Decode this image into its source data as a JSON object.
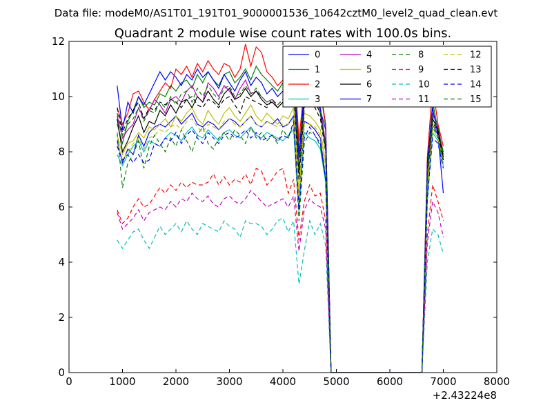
{
  "chart_data": {
    "type": "line",
    "suptitle": "Data file: modeM0/AS1T01_191T01_9000001536_10642cztM0_level2_quad_clean.evt",
    "title": "Quadrant 2 module wise count rates with 100.0s bins.",
    "xlabel": "",
    "ylabel": "",
    "x_offset_text": "+2.43224e8",
    "xlim": [
      0,
      8000
    ],
    "ylim": [
      0,
      12
    ],
    "xticks": [
      "0",
      "1000",
      "2000",
      "3000",
      "4000",
      "5000",
      "6000",
      "7000",
      "8000"
    ],
    "yticks": [
      "0",
      "2",
      "4",
      "6",
      "8",
      "10",
      "12"
    ],
    "grid": false,
    "legend_position": "top-right",
    "legend_columns": 4,
    "x": [
      900,
      1000,
      1100,
      1200,
      1300,
      1400,
      1500,
      1600,
      1700,
      1800,
      1900,
      2000,
      2100,
      2200,
      2300,
      2400,
      2500,
      2600,
      2700,
      2800,
      2900,
      3000,
      3100,
      3200,
      3300,
      3400,
      3500,
      3600,
      3700,
      3800,
      3900,
      4000,
      4100,
      4200,
      4300,
      4400,
      4500,
      4600,
      4700,
      4800,
      4900,
      5000,
      5500,
      6000,
      6500,
      6600,
      6700,
      6800,
      6900,
      7000
    ],
    "series": [
      {
        "name": "0",
        "color": "#0000ff",
        "dash": false,
        "values": [
          8.4,
          7.6,
          8.1,
          7.9,
          8.6,
          8.2,
          8.7,
          8.9,
          9.0,
          8.9,
          9.1,
          9.3,
          9.0,
          9.2,
          9.4,
          9.0,
          8.9,
          9.1,
          9.0,
          8.8,
          9.0,
          9.2,
          9.1,
          8.9,
          9.1,
          9.3,
          9.0,
          8.9,
          9.1,
          9.0,
          9.2,
          8.9,
          9.0,
          9.3,
          6.0,
          9.1,
          9.0,
          8.8,
          8.5,
          7.0,
          0,
          0,
          0,
          0,
          0,
          0,
          6.5,
          9.0,
          8.6,
          7.8
        ]
      },
      {
        "name": "1",
        "color": "#008000",
        "dash": false,
        "values": [
          9.0,
          8.3,
          9.1,
          9.5,
          10.0,
          9.6,
          9.8,
          9.7,
          10.1,
          10.0,
          10.4,
          10.2,
          10.5,
          10.6,
          10.3,
          10.8,
          10.5,
          10.9,
          10.6,
          10.4,
          10.8,
          10.9,
          10.5,
          10.7,
          11.0,
          10.6,
          11.1,
          10.8,
          10.6,
          10.4,
          10.2,
          10.5,
          10.3,
          11.4,
          8.0,
          10.1,
          10.9,
          10.6,
          10.2,
          8.9,
          0,
          0,
          0,
          0,
          0,
          0,
          7.5,
          9.8,
          8.8,
          8.0
        ]
      },
      {
        "name": "2",
        "color": "#ff0000",
        "dash": false,
        "values": [
          9.6,
          9.0,
          9.4,
          10.1,
          10.2,
          9.8,
          9.5,
          9.9,
          10.2,
          10.5,
          10.3,
          11.0,
          10.8,
          11.1,
          10.7,
          11.2,
          10.9,
          11.3,
          11.0,
          10.8,
          11.2,
          11.1,
          10.7,
          11.0,
          11.9,
          11.1,
          11.8,
          11.6,
          10.9,
          10.7,
          10.4,
          10.6,
          10.4,
          11.6,
          8.4,
          10.4,
          11.1,
          10.8,
          10.3,
          9.0,
          0,
          0,
          0,
          0,
          0,
          0,
          7.8,
          10.4,
          9.0,
          8.2
        ]
      },
      {
        "name": "3",
        "color": "#00bfbf",
        "dash": false,
        "values": [
          7.9,
          7.5,
          7.9,
          8.2,
          8.4,
          8.0,
          8.4,
          8.3,
          8.2,
          8.5,
          8.7,
          8.6,
          8.4,
          8.7,
          8.9,
          8.6,
          8.5,
          8.8,
          8.6,
          8.4,
          8.7,
          8.8,
          8.6,
          8.5,
          8.7,
          8.9,
          8.6,
          8.5,
          8.7,
          8.6,
          8.5,
          8.4,
          8.6,
          8.8,
          5.8,
          8.7,
          8.5,
          8.4,
          8.1,
          6.9,
          0,
          0,
          0,
          0,
          0,
          0,
          6.2,
          8.7,
          8.4,
          7.5
        ]
      },
      {
        "name": "4",
        "color": "#bf00bf",
        "dash": false,
        "values": [
          9.3,
          8.5,
          8.8,
          9.0,
          9.6,
          9.2,
          9.5,
          9.9,
          9.7,
          9.4,
          9.9,
          10.0,
          9.8,
          10.2,
          10.4,
          10.0,
          9.8,
          10.5,
          10.3,
          10.0,
          10.4,
          10.2,
          9.9,
          10.3,
          10.6,
          10.1,
          10.2,
          10.0,
          9.8,
          9.9,
          9.6,
          9.8,
          9.7,
          10.4,
          7.4,
          10.0,
          10.3,
          9.9,
          9.6,
          8.3,
          0,
          0,
          0,
          0,
          0,
          0,
          7.2,
          9.4,
          8.9,
          7.9
        ]
      },
      {
        "name": "5",
        "color": "#bfbf00",
        "dash": false,
        "values": [
          8.6,
          7.9,
          8.3,
          8.4,
          8.7,
          8.5,
          8.9,
          8.8,
          9.0,
          9.2,
          8.9,
          9.3,
          9.1,
          9.4,
          9.6,
          9.2,
          9.0,
          9.5,
          9.2,
          9.0,
          9.4,
          9.6,
          9.3,
          9.1,
          9.4,
          9.7,
          9.3,
          9.1,
          9.4,
          9.2,
          9.0,
          9.3,
          9.2,
          9.6,
          6.5,
          9.4,
          9.3,
          9.1,
          8.8,
          7.6,
          0,
          0,
          0,
          0,
          0,
          0,
          6.8,
          9.0,
          8.7,
          7.7
        ]
      },
      {
        "name": "6",
        "color": "#000000",
        "dash": false,
        "values": [
          9.2,
          8.0,
          8.4,
          8.9,
          9.3,
          8.7,
          9.1,
          9.0,
          9.5,
          9.3,
          9.7,
          9.4,
          9.8,
          9.9,
          9.6,
          10.0,
          9.8,
          10.2,
          9.9,
          9.7,
          10.1,
          10.3,
          9.9,
          10.0,
          10.3,
          10.0,
          10.2,
          9.9,
          9.7,
          9.8,
          9.6,
          9.8,
          9.7,
          10.3,
          7.2,
          9.8,
          10.1,
          9.8,
          9.4,
          8.1,
          0,
          0,
          0,
          0,
          0,
          0,
          7.3,
          9.2,
          8.8,
          7.8
        ]
      },
      {
        "name": "7",
        "color": "#0000ff",
        "dash": false,
        "values": [
          10.4,
          8.8,
          9.8,
          9.4,
          10.0,
          9.7,
          10.1,
          10.5,
          10.9,
          10.6,
          10.9,
          10.7,
          10.4,
          10.8,
          10.6,
          11.0,
          10.7,
          10.9,
          10.6,
          10.3,
          10.8,
          10.5,
          10.2,
          10.6,
          10.9,
          10.4,
          10.7,
          10.5,
          10.1,
          10.3,
          10.0,
          10.2,
          10.1,
          10.9,
          7.8,
          10.2,
          11.2,
          10.8,
          9.5,
          8.8,
          0,
          0,
          0,
          0,
          0,
          0,
          7.6,
          9.6,
          8.6,
          6.5
        ]
      },
      {
        "name": "8",
        "color": "#008000",
        "dash": true,
        "values": [
          8.7,
          6.7,
          7.6,
          7.9,
          8.4,
          7.4,
          8.2,
          8.6,
          8.3,
          8.0,
          8.5,
          8.2,
          8.8,
          8.4,
          8.0,
          8.6,
          8.9,
          8.3,
          8.1,
          8.5,
          8.7,
          8.4,
          8.8,
          8.6,
          8.3,
          8.9,
          8.5,
          8.7,
          8.4,
          8.6,
          8.3,
          8.8,
          8.5,
          9.0,
          5.5,
          8.3,
          8.7,
          8.6,
          8.2,
          7.0,
          0,
          0,
          0,
          0,
          0,
          0,
          6.4,
          8.9,
          8.5,
          7.6
        ]
      },
      {
        "name": "9",
        "color": "#ff0000",
        "dash": true,
        "values": [
          5.9,
          5.4,
          5.6,
          6.0,
          6.3,
          6.0,
          6.1,
          6.4,
          6.7,
          6.5,
          6.8,
          6.6,
          6.9,
          6.7,
          6.9,
          6.8,
          6.8,
          6.9,
          7.2,
          6.8,
          7.1,
          6.8,
          7.0,
          6.9,
          7.2,
          6.8,
          7.4,
          7.3,
          6.8,
          7.0,
          7.3,
          7.4,
          6.5,
          7.0,
          4.8,
          6.2,
          6.8,
          6.4,
          6.5,
          5.5,
          0,
          0,
          0,
          0,
          0,
          0,
          5.0,
          6.8,
          6.2,
          5.5
        ]
      },
      {
        "name": "10",
        "color": "#00bfbf",
        "dash": true,
        "values": [
          4.8,
          4.5,
          4.8,
          5.1,
          5.2,
          4.8,
          4.5,
          4.9,
          5.3,
          5.0,
          5.2,
          5.4,
          5.1,
          5.5,
          5.2,
          5.0,
          5.4,
          5.3,
          5.2,
          5.1,
          5.5,
          5.3,
          5.2,
          4.9,
          5.5,
          5.4,
          5.4,
          5.3,
          5.0,
          5.2,
          5.5,
          5.6,
          5.1,
          5.5,
          3.2,
          4.4,
          5.5,
          5.0,
          5.4,
          4.6,
          0,
          0,
          0,
          0,
          0,
          0,
          4.0,
          5.2,
          5.0,
          4.3
        ]
      },
      {
        "name": "11",
        "color": "#bf00bf",
        "dash": true,
        "values": [
          5.8,
          5.2,
          5.4,
          5.6,
          5.9,
          5.5,
          5.8,
          5.9,
          6.0,
          5.9,
          6.2,
          6.0,
          6.3,
          6.2,
          6.5,
          6.3,
          6.2,
          6.4,
          6.1,
          6.0,
          6.3,
          6.4,
          6.2,
          6.1,
          6.3,
          6.6,
          6.4,
          6.2,
          6.0,
          6.1,
          6.2,
          6.3,
          6.0,
          6.4,
          4.4,
          5.9,
          6.3,
          6.1,
          6.0,
          5.2,
          0,
          0,
          0,
          0,
          0,
          0,
          4.7,
          6.2,
          5.8,
          4.9
        ]
      },
      {
        "name": "12",
        "color": "#bfbf00",
        "dash": true,
        "values": [
          8.3,
          7.7,
          8.0,
          8.3,
          8.5,
          8.1,
          8.5,
          8.6,
          8.8,
          8.7,
          8.9,
          9.0,
          8.8,
          9.1,
          9.2,
          8.9,
          8.7,
          9.0,
          8.9,
          8.8,
          9.1,
          9.2,
          9.0,
          8.9,
          9.1,
          9.3,
          9.0,
          8.9,
          9.1,
          9.0,
          8.9,
          9.0,
          9.0,
          9.2,
          6.1,
          9.0,
          9.0,
          8.9,
          8.6,
          7.3,
          0,
          0,
          0,
          0,
          0,
          0,
          6.5,
          8.8,
          8.5,
          7.6
        ]
      },
      {
        "name": "13",
        "color": "#000000",
        "dash": true,
        "values": [
          9.6,
          8.7,
          9.2,
          9.5,
          9.8,
          9.2,
          9.6,
          9.5,
          9.8,
          9.7,
          9.9,
          9.8,
          9.6,
          9.9,
          10.0,
          9.7,
          9.6,
          9.9,
          9.8,
          9.6,
          9.9,
          10.0,
          9.7,
          9.4,
          10.0,
          9.9,
          9.8,
          9.7,
          9.6,
          9.9,
          9.7,
          9.9,
          9.8,
          10.2,
          7.0,
          9.6,
          9.8,
          9.6,
          9.2,
          8.0,
          0,
          0,
          0,
          0,
          0,
          0,
          7.1,
          9.1,
          8.7,
          7.7
        ]
      },
      {
        "name": "14",
        "color": "#0000ff",
        "dash": true,
        "values": [
          8.2,
          7.7,
          7.9,
          7.6,
          7.9,
          7.6,
          7.7,
          8.3,
          8.2,
          8.5,
          8.4,
          8.7,
          8.3,
          8.6,
          8.8,
          8.5,
          8.3,
          8.7,
          8.5,
          8.3,
          8.6,
          8.7,
          8.5,
          8.6,
          8.8,
          8.5,
          8.7,
          8.4,
          8.5,
          8.6,
          8.4,
          8.6,
          8.5,
          9.1,
          5.9,
          8.5,
          8.9,
          8.6,
          8.3,
          7.0,
          0,
          0,
          0,
          0,
          0,
          0,
          6.3,
          8.5,
          8.3,
          7.4
        ]
      },
      {
        "name": "15",
        "color": "#008000",
        "dash": true,
        "values": [
          9.4,
          8.6,
          9.0,
          9.2,
          9.6,
          9.1,
          9.5,
          9.4,
          9.8,
          9.6,
          10.0,
          9.7,
          10.1,
          10.2,
          9.8,
          10.3,
          10.0,
          10.4,
          10.1,
          9.9,
          10.3,
          10.4,
          10.0,
          10.1,
          10.4,
          10.1,
          10.3,
          10.0,
          9.8,
          9.9,
          9.7,
          9.9,
          9.8,
          10.5,
          7.3,
          9.9,
          10.2,
          9.9,
          9.5,
          8.2,
          0,
          0,
          0,
          0,
          0,
          0,
          7.3,
          9.3,
          8.9,
          7.9
        ]
      }
    ]
  }
}
